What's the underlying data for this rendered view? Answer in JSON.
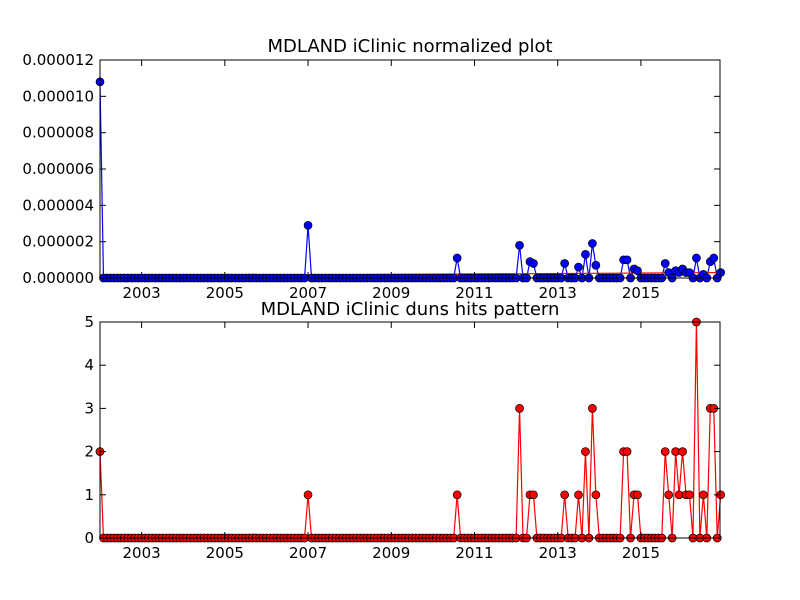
{
  "chart_data": [
    {
      "type": "line",
      "title": "MDLAND iClinic normalized plot",
      "xlabel": "",
      "ylabel": "",
      "xlim": [
        2002.0,
        2016.9
      ],
      "ylim": [
        0,
        1.2e-05
      ],
      "xticks": [
        2003,
        2005,
        2007,
        2009,
        2011,
        2013,
        2015
      ],
      "xtick_labels": [
        "2003",
        "2005",
        "2007",
        "2009",
        "2011",
        "2013",
        "2015"
      ],
      "yticks": [
        0,
        2e-06,
        4e-06,
        6e-06,
        8e-06,
        1e-05,
        1.2e-05
      ],
      "ytick_labels": [
        "0.000000",
        "0.000002",
        "0.000004",
        "0.000006",
        "0.000008",
        "0.000010",
        "0.000012"
      ],
      "grid": false,
      "colors": {
        "series": "#0000ff",
        "trend": "#ff0000"
      },
      "trend": {
        "x": [
          2002.0,
          2016.9
        ],
        "y": [
          1e-07,
          3e-07
        ]
      },
      "series": [
        {
          "x": [
            2002.0,
            2007.0,
            2010.55,
            2012.1,
            2012.3,
            2012.4,
            2013.15,
            2013.5,
            2013.65,
            2013.85,
            2013.95,
            2014.55,
            2014.65,
            2014.8,
            2014.95,
            2015.55,
            2015.7,
            2015.8,
            2015.9,
            2016.0,
            2016.1,
            2016.2,
            2016.3,
            2016.5,
            2016.65,
            2016.75,
            2016.9
          ],
          "y": [
            1.08e-05,
            2.9e-06,
            1.1e-06,
            1.8e-06,
            9e-07,
            8e-07,
            8e-07,
            6e-07,
            1.3e-06,
            1.9e-06,
            7e-07,
            1e-06,
            1e-06,
            5e-07,
            4e-07,
            8e-07,
            3e-07,
            4e-07,
            3e-07,
            5e-07,
            3e-07,
            3e-07,
            1.1e-06,
            2e-07,
            9e-07,
            1.1e-06,
            3e-07
          ]
        }
      ]
    },
    {
      "type": "line",
      "title": "MDLAND iClinic duns hits pattern",
      "xlabel": "",
      "ylabel": "",
      "xlim": [
        2002.0,
        2016.9
      ],
      "ylim": [
        0,
        5
      ],
      "xticks": [
        2003,
        2005,
        2007,
        2009,
        2011,
        2013,
        2015
      ],
      "xtick_labels": [
        "2003",
        "2005",
        "2007",
        "2009",
        "2011",
        "2013",
        "2015"
      ],
      "yticks": [
        0,
        1,
        2,
        3,
        4,
        5
      ],
      "ytick_labels": [
        "0",
        "1",
        "2",
        "3",
        "4",
        "5"
      ],
      "grid": false,
      "colors": {
        "series": "#ff0000"
      },
      "series": [
        {
          "x": [
            2002.0,
            2007.0,
            2010.55,
            2012.1,
            2012.3,
            2012.4,
            2013.15,
            2013.5,
            2013.65,
            2013.85,
            2013.95,
            2014.55,
            2014.65,
            2014.8,
            2014.95,
            2015.55,
            2015.7,
            2015.8,
            2015.9,
            2016.0,
            2016.1,
            2016.2,
            2016.3,
            2016.5,
            2016.65,
            2016.75,
            2016.9
          ],
          "y": [
            2,
            1,
            1,
            3,
            1,
            1,
            1,
            1,
            2,
            3,
            1,
            2,
            2,
            1,
            1,
            2,
            1,
            2,
            1,
            2,
            1,
            1,
            5,
            1,
            3,
            3,
            1
          ]
        }
      ]
    }
  ]
}
